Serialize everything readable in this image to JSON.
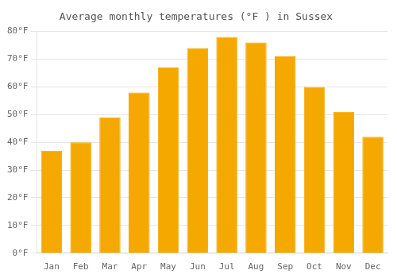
{
  "chart_data": {
    "type": "bar",
    "title": "Average monthly temperatures (°F ) in Sussex",
    "categories": [
      "Jan",
      "Feb",
      "Mar",
      "Apr",
      "May",
      "Jun",
      "Jul",
      "Aug",
      "Sep",
      "Oct",
      "Nov",
      "Dec"
    ],
    "values": [
      37,
      40,
      49,
      58,
      67,
      74,
      78,
      76,
      71,
      60,
      51,
      42
    ],
    "color": "#F5A800",
    "ylim": [
      0,
      80
    ],
    "yticks": [
      {
        "value": 0,
        "label": "0°F"
      },
      {
        "value": 10,
        "label": "10°F"
      },
      {
        "value": 20,
        "label": "20°F"
      },
      {
        "value": 30,
        "label": "30°F"
      },
      {
        "value": 40,
        "label": "40°F"
      },
      {
        "value": 50,
        "label": "50°F"
      },
      {
        "value": 60,
        "label": "60°F"
      },
      {
        "value": 70,
        "label": "70°F"
      },
      {
        "value": 80,
        "label": "80°F"
      }
    ],
    "grid": true
  }
}
